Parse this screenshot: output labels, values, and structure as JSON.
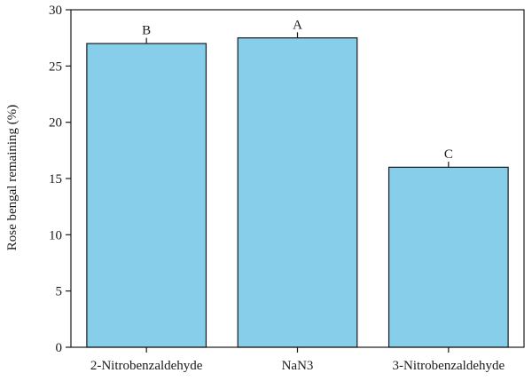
{
  "chart_data": {
    "type": "bar",
    "title": "",
    "xlabel": "",
    "ylabel": "Rose bengal remaining (%)",
    "ylim": [
      0,
      30
    ],
    "yticks": [
      0,
      5,
      10,
      15,
      20,
      25,
      30
    ],
    "categories": [
      "2-Nitrobenzaldehyde",
      "NaN3",
      "3-Nitrobenzaldehyde"
    ],
    "values": [
      27.0,
      27.5,
      16.0
    ],
    "errors": [
      0.5,
      0.5,
      0.5
    ],
    "significance_letters": [
      "B",
      "A",
      "C"
    ],
    "bar_color": "#87ceeb",
    "edge_color": "#1a1a1a",
    "grid": false
  }
}
